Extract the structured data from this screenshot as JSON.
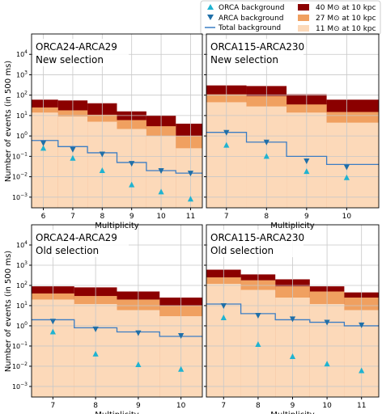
{
  "legend": {
    "orca": "ORCA background",
    "arca": "ARCA background",
    "total": "Total background",
    "m40": "40 M⊙ at 10 kpc",
    "m27": "27 M⊙ at 10 kpc",
    "m11": "11 M⊙ at 10 kpc",
    "colors": {
      "m40": "#8b0000",
      "m27": "#f0a060",
      "m11": "#fcd9b9",
      "orca": "#1fb3d1",
      "arca": "#1f6fa8",
      "total": "#3b7dc4"
    }
  },
  "ylabel_top": "Number of events (in 500 ms)",
  "ylabel_bottom": "Number of events (in 500 ms)",
  "chart_data": [
    {
      "type": "step",
      "title": "ORCA24-ARCA29",
      "subtitle": "New selection",
      "xlabel": "Multiplicity",
      "ylog": true,
      "ylim": [
        0.0003,
        100000
      ],
      "xlim": [
        5.6,
        11.4
      ],
      "xticks": [
        6,
        7,
        8,
        9,
        10,
        11
      ],
      "bands": {
        "edges": [
          5.6,
          6.5,
          7.5,
          8.5,
          9.5,
          10.5,
          11.4
        ],
        "m11": [
          14,
          9,
          5,
          2.2,
          1.0,
          0.25
        ],
        "m27": [
          25,
          18,
          11,
          6,
          3,
          1.0
        ],
        "m40": [
          60,
          55,
          40,
          16,
          10,
          4
        ]
      },
      "total": [
        0.6,
        0.3,
        0.15,
        0.05,
        0.02,
        0.015
      ],
      "orca": {
        "x": [
          6,
          7,
          8,
          9,
          10,
          11
        ],
        "y": [
          0.25,
          0.08,
          0.02,
          0.004,
          0.0018,
          0.0008
        ]
      },
      "arca": {
        "x": [
          6,
          7,
          8,
          9,
          10,
          11
        ],
        "y": [
          0.45,
          0.22,
          0.13,
          0.045,
          0.02,
          0.015
        ]
      }
    },
    {
      "type": "step",
      "title": "ORCA115-ARCA230",
      "subtitle": "New selection",
      "xlabel": "Multiplicity",
      "ylog": true,
      "ylim": [
        0.0003,
        100000
      ],
      "xlim": [
        6.5,
        10.8
      ],
      "xticks": [
        7,
        8,
        9,
        10
      ],
      "bands": {
        "edges": [
          6.5,
          7.5,
          8.5,
          9.5,
          10.8
        ],
        "m11": [
          45,
          28,
          14,
          4.5
        ],
        "m27": [
          110,
          90,
          35,
          15
        ],
        "m40": [
          300,
          280,
          110,
          60
        ]
      },
      "total": [
        1.5,
        0.5,
        0.1,
        0.04
      ],
      "orca": {
        "x": [
          7,
          8,
          9,
          10
        ],
        "y": [
          0.35,
          0.1,
          0.018,
          0.009
        ]
      },
      "arca": {
        "x": [
          7,
          8,
          9,
          10
        ],
        "y": [
          1.5,
          0.5,
          0.06,
          0.03
        ]
      }
    },
    {
      "type": "step",
      "title": "ORCA24-ARCA29",
      "subtitle": "Old selection",
      "xlabel": "Multiplicity",
      "ylog": true,
      "ylim": [
        0.0003,
        100000
      ],
      "xlim": [
        6.5,
        10.5
      ],
      "xticks": [
        7,
        8,
        9,
        10
      ],
      "bands": {
        "edges": [
          6.5,
          7.5,
          8.5,
          9.5,
          10.5
        ],
        "m11": [
          20,
          12,
          6,
          3
        ],
        "m27": [
          40,
          30,
          20,
          10
        ],
        "m40": [
          90,
          80,
          50,
          25
        ]
      },
      "total": [
        2,
        0.8,
        0.5,
        0.3
      ],
      "orca": {
        "x": [
          7,
          8,
          9,
          10
        ],
        "y": [
          0.5,
          0.04,
          0.012,
          0.007
        ]
      },
      "arca": {
        "x": [
          7,
          8,
          9,
          10
        ],
        "y": [
          1.7,
          0.7,
          0.45,
          0.33
        ]
      }
    },
    {
      "type": "step",
      "title": "ORCA115-ARCA230",
      "subtitle": "Old selection",
      "xlabel": "Multiplicity",
      "ylog": true,
      "ylim": [
        0.0003,
        100000
      ],
      "xlim": [
        6.5,
        11.5
      ],
      "xticks": [
        7,
        8,
        9,
        10,
        11
      ],
      "bands": {
        "edges": [
          6.5,
          7.5,
          8.5,
          9.5,
          10.5,
          11.5
        ],
        "m11": [
          120,
          60,
          25,
          12,
          6
        ],
        "m27": [
          250,
          180,
          90,
          50,
          25
        ],
        "m40": [
          600,
          350,
          200,
          90,
          45
        ]
      },
      "total": [
        12,
        4,
        2,
        1.5,
        1
      ],
      "orca": {
        "x": [
          7,
          8,
          9,
          10,
          11
        ],
        "y": [
          2.5,
          0.12,
          0.03,
          0.013,
          0.006
        ]
      },
      "arca": {
        "x": [
          7,
          8,
          9,
          10,
          11
        ],
        "y": [
          10,
          3.3,
          2.2,
          1.5,
          1.1
        ]
      }
    }
  ]
}
